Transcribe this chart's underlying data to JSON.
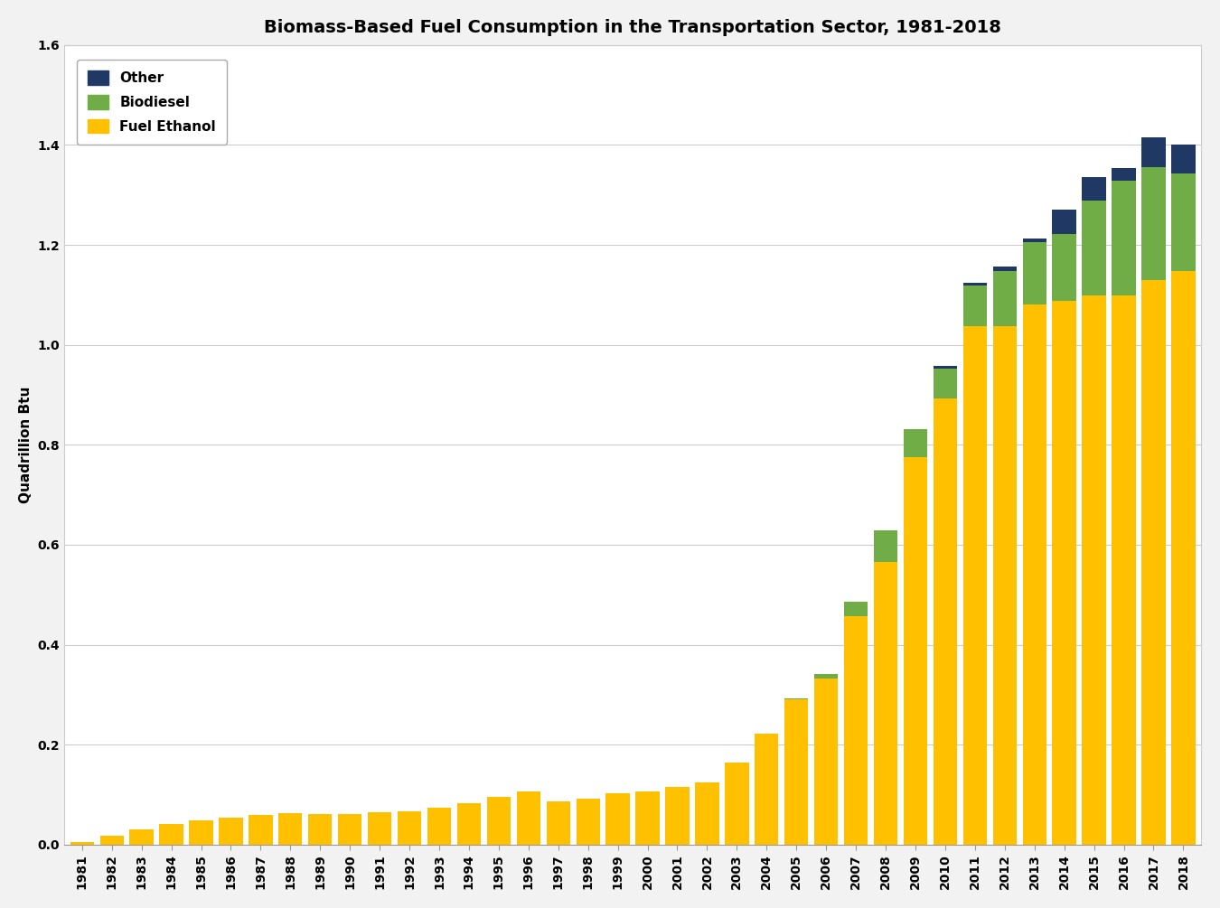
{
  "title": "Biomass-Based Fuel Consumption in the Transportation Sector, 1981-2018",
  "ylabel": "Quadrillion Btu",
  "years": [
    1981,
    1982,
    1983,
    1984,
    1985,
    1986,
    1987,
    1988,
    1989,
    1990,
    1991,
    1992,
    1993,
    1994,
    1995,
    1996,
    1997,
    1998,
    1999,
    2000,
    2001,
    2002,
    2003,
    2004,
    2005,
    2006,
    2007,
    2008,
    2009,
    2010,
    2011,
    2012,
    2013,
    2014,
    2015,
    2016,
    2017,
    2018
  ],
  "fuel_ethanol": [
    0.005,
    0.018,
    0.03,
    0.042,
    0.048,
    0.054,
    0.06,
    0.063,
    0.062,
    0.062,
    0.064,
    0.066,
    0.074,
    0.083,
    0.096,
    0.107,
    0.086,
    0.092,
    0.102,
    0.107,
    0.115,
    0.125,
    0.165,
    0.223,
    0.291,
    0.332,
    0.458,
    0.566,
    0.775,
    0.893,
    1.038,
    1.038,
    1.08,
    1.088,
    1.098,
    1.098,
    1.13,
    1.148
  ],
  "biodiesel": [
    0.0,
    0.0,
    0.0,
    0.0,
    0.0,
    0.0,
    0.0,
    0.0,
    0.0,
    0.0,
    0.0,
    0.0,
    0.0,
    0.0,
    0.0,
    0.0,
    0.0,
    0.0,
    0.0,
    0.0,
    0.0,
    0.0,
    0.0,
    0.0,
    0.002,
    0.01,
    0.028,
    0.062,
    0.057,
    0.06,
    0.08,
    0.11,
    0.125,
    0.133,
    0.19,
    0.23,
    0.225,
    0.195
  ],
  "other": [
    0.0,
    0.0,
    0.0,
    0.0,
    0.0,
    0.0,
    0.0,
    0.0,
    0.0,
    0.0,
    0.0,
    0.0,
    0.0,
    0.0,
    0.0,
    0.0,
    0.0,
    0.0,
    0.0,
    0.0,
    0.0,
    0.0,
    0.0,
    0.0,
    0.0,
    0.0,
    0.0,
    0.0,
    0.0,
    0.004,
    0.007,
    0.008,
    0.008,
    0.05,
    0.047,
    0.025,
    0.06,
    0.057
  ],
  "color_ethanol": "#FFC000",
  "color_biodiesel": "#70AD47",
  "color_other": "#1F3864",
  "ylim": [
    0.0,
    1.6
  ],
  "yticks": [
    0.0,
    0.2,
    0.4,
    0.6,
    0.8,
    1.0,
    1.2,
    1.4,
    1.6
  ],
  "outer_bg_color": "#F2F2F2",
  "plot_bg_color": "#FFFFFF",
  "title_fontsize": 14,
  "axis_label_fontsize": 11,
  "tick_fontsize": 10,
  "legend_fontsize": 11,
  "bar_width": 0.8
}
